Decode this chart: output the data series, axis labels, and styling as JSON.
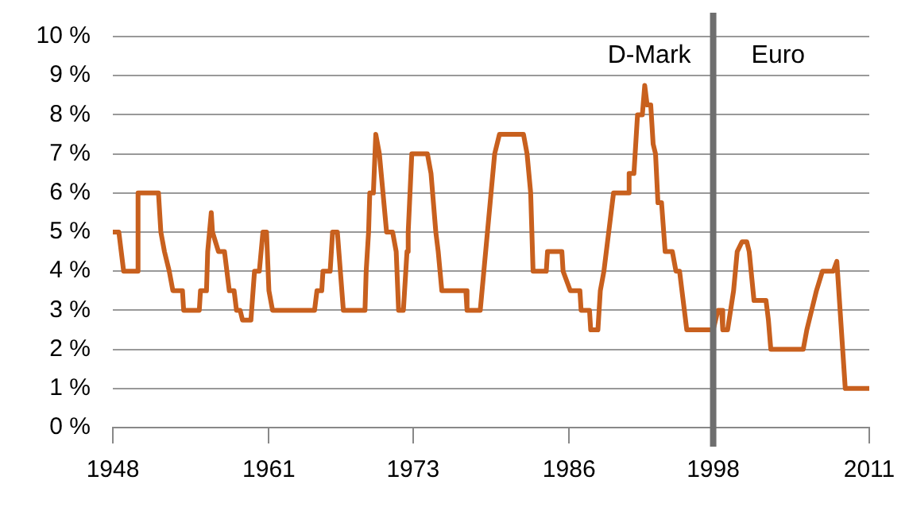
{
  "chart_data": {
    "type": "line",
    "color": "#c8601e",
    "x": [
      1948.0,
      1948.5,
      1948.7,
      1948.9,
      1950.0,
      1950.1,
      1951.8,
      1952.0,
      1952.3,
      1952.7,
      1953.0,
      1953.8,
      1953.9,
      1955.2,
      1955.3,
      1955.8,
      1955.9,
      1956.2,
      1956.3,
      1956.8,
      1957.3,
      1957.7,
      1958.1,
      1958.3,
      1958.6,
      1958.8,
      1959.5,
      1959.8,
      1960.2,
      1960.5,
      1960.8,
      1961.0,
      1961.3,
      1964.8,
      1965.0,
      1965.4,
      1965.5,
      1966.1,
      1966.3,
      1966.7,
      1967.2,
      1969.0,
      1969.1,
      1969.3,
      1969.4,
      1969.7,
      1969.9,
      1970.2,
      1970.5,
      1970.8,
      1971.3,
      1971.6,
      1971.8,
      1972.2,
      1972.5,
      1972.6,
      1972.9,
      1974.2,
      1974.5,
      1974.9,
      1975.1,
      1975.4,
      1977.4,
      1977.5,
      1978.6,
      1978.9,
      1979.2,
      1979.5,
      1979.8,
      1980.2,
      1982.2,
      1982.5,
      1982.8,
      1983.0,
      1984.1,
      1984.2,
      1985.4,
      1985.5,
      1986.1,
      1986.9,
      1987.0,
      1987.7,
      1987.8,
      1988.4,
      1988.6,
      1988.9,
      1989.3,
      1989.7,
      1990.9,
      1991.0,
      1991.4,
      1991.6,
      1991.7,
      1992.1,
      1992.3,
      1992.5,
      1992.8,
      1993.0,
      1993.2,
      1993.4,
      1993.7,
      1994.0,
      1994.6,
      1994.9,
      1995.2,
      1995.4,
      1995.6,
      1995.8,
      1998.0,
      1998.4,
      1998.7,
      1998.8,
      1999.2,
      1999.7,
      2000.0,
      2000.4,
      2000.8,
      2001.0,
      2001.4,
      2002.4,
      2002.6,
      2002.8,
      2005.5,
      2005.8,
      2006.2,
      2006.6,
      2007.1,
      2008.0,
      2008.3,
      2009.0,
      2011.0
    ],
    "values": [
      5,
      5,
      4.5,
      4,
      4,
      6,
      6,
      5,
      4.5,
      4,
      3.5,
      3.5,
      3,
      3,
      3.5,
      3.5,
      4.5,
      5.5,
      5,
      4.5,
      4.5,
      3.5,
      3.5,
      3,
      3,
      2.75,
      2.75,
      4,
      4,
      5,
      5,
      3.5,
      3,
      3,
      3.5,
      3.5,
      4,
      4,
      5,
      5,
      3,
      3,
      4,
      5,
      6,
      6,
      7.5,
      7,
      6,
      5,
      5,
      4.5,
      3,
      3,
      4.5,
      5,
      7,
      7,
      6.5,
      5,
      4.5,
      3.5,
      3.5,
      3,
      3,
      4,
      5,
      6,
      7,
      7.5,
      7.5,
      7,
      6,
      4,
      4,
      4.5,
      4.5,
      4,
      3.5,
      3.5,
      3,
      3,
      2.5,
      2.5,
      3.5,
      4,
      5,
      6,
      6,
      6.5,
      6.5,
      7.5,
      8,
      8,
      8.75,
      8.25,
      8.25,
      7.25,
      7,
      5.75,
      5.75,
      4.5,
      4.5,
      4,
      4,
      3.5,
      3,
      2.5,
      2.5,
      3,
      3,
      2.5,
      2.5,
      3.5,
      4.5,
      4.75,
      4.75,
      4.5,
      3.25,
      3.25,
      2.75,
      2,
      2,
      2.5,
      3,
      3.5,
      4,
      4,
      4.25,
      1,
      1
    ],
    "xlim": [
      1948,
      2011
    ],
    "xticks": [
      1948,
      1961,
      1973,
      1986,
      1998,
      2011
    ],
    "ylim": [
      0,
      10
    ],
    "yticks": [
      {
        "value": 0,
        "label": "0 %"
      },
      {
        "value": 1,
        "label": "1 %"
      },
      {
        "value": 2,
        "label": "2 %"
      },
      {
        "value": 3,
        "label": "3 %"
      },
      {
        "value": 4,
        "label": "4 %"
      },
      {
        "value": 5,
        "label": "5 %"
      },
      {
        "value": 6,
        "label": "6 %"
      },
      {
        "value": 7,
        "label": "7 %"
      },
      {
        "value": 8,
        "label": "8 %"
      },
      {
        "value": 9,
        "label": "9 %"
      },
      {
        "value": 10,
        "label": "10 %"
      }
    ],
    "grid": "y",
    "legend": false,
    "marker": "none",
    "line_style": "solid",
    "ref_lines": [
      {
        "axis": "x",
        "value": 1998,
        "color": "#6e6e6e"
      }
    ],
    "annotations": [
      "D-Mark",
      "Euro"
    ]
  }
}
